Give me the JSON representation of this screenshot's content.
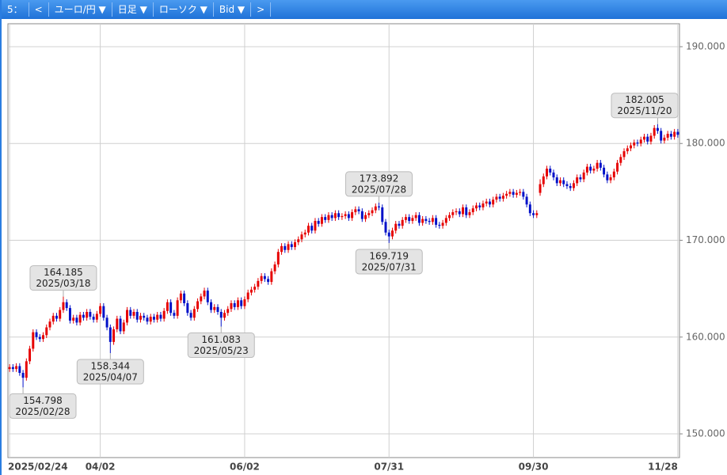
{
  "toolbar": {
    "items": [
      "5：",
      "<",
      "ユーロ/円 ▼",
      "日足 ▼",
      "ローソク ▼",
      "Bid ▼",
      ">"
    ]
  },
  "chart_data": {
    "type": "candlestick",
    "up_color": "#e60000",
    "down_color": "#0010c8",
    "grid": true,
    "open": [
      156.7,
      156.9,
      156.7,
      157.0,
      156.3,
      155.8,
      157.5,
      158.8,
      160.5,
      160.0,
      159.8,
      160.2,
      161.0,
      161.6,
      162.2,
      161.9,
      162.8,
      163.6,
      163.0,
      161.7,
      162.0,
      161.5,
      162.3,
      162.0,
      162.6,
      162.1,
      161.8,
      162.4,
      163.2,
      162.0,
      161.0,
      159.5,
      160.8,
      161.9,
      160.6,
      161.5,
      162.8,
      162.2,
      162.6,
      161.8,
      162.2,
      162.0,
      161.6,
      162.1,
      161.8,
      162.3,
      161.9,
      162.7,
      163.6,
      162.5,
      162.2,
      163.8,
      164.5,
      163.5,
      162.5,
      162.0,
      162.9,
      163.7,
      164.2,
      164.8,
      163.6,
      162.8,
      163.1,
      162.6,
      162.0,
      162.5,
      162.9,
      163.5,
      163.1,
      163.8,
      163.2,
      163.9,
      164.6,
      164.9,
      165.2,
      165.8,
      166.3,
      166.0,
      165.7,
      166.8,
      167.5,
      168.8,
      169.4,
      169.0,
      169.6,
      169.3,
      169.8,
      170.1,
      170.6,
      170.8,
      171.5,
      171.0,
      172.0,
      171.7,
      172.4,
      172.1,
      172.6,
      172.3,
      172.8,
      172.4,
      172.5,
      172.7,
      172.3,
      172.9,
      173.2,
      173.0,
      172.2,
      172.6,
      172.8,
      173.1,
      173.5,
      173.4,
      171.9,
      170.8,
      170.4,
      171.0,
      171.7,
      171.5,
      172.1,
      172.4,
      172.0,
      172.3,
      172.6,
      171.8,
      172.2,
      172.0,
      171.9,
      172.3,
      171.6,
      171.5,
      171.8,
      172.3,
      172.6,
      172.9,
      173.0,
      172.7,
      173.4,
      172.6,
      172.9,
      173.3,
      173.6,
      173.4,
      173.8,
      174.0,
      173.7,
      174.2,
      174.5,
      174.3,
      174.6,
      174.8,
      175.0,
      174.7,
      174.9,
      175.0,
      174.5,
      173.7,
      172.8,
      172.6,
      174.9,
      175.8,
      176.6,
      177.4,
      177.0,
      176.5,
      175.9,
      176.2,
      175.8,
      175.6,
      175.4,
      175.9,
      176.5,
      176.3,
      177.0,
      177.6,
      177.2,
      177.4,
      178.0,
      177.5,
      176.8,
      176.2,
      176.5,
      177.1,
      178.0,
      178.6,
      179.2,
      179.5,
      179.8,
      180.1,
      180.0,
      180.4,
      180.7,
      180.2,
      180.8,
      181.6,
      181.3,
      180.3,
      180.6,
      181.0,
      180.7,
      181.2
    ],
    "high": [
      157.2,
      157.2,
      157.3,
      157.3,
      156.6,
      157.8,
      159.1,
      160.8,
      160.8,
      160.3,
      160.5,
      161.3,
      161.9,
      162.5,
      162.5,
      163.1,
      164.185,
      163.9,
      163.3,
      162.3,
      162.3,
      162.6,
      162.6,
      162.9,
      162.9,
      162.4,
      162.7,
      163.5,
      163.5,
      162.3,
      161.3,
      161.1,
      162.2,
      162.2,
      161.8,
      163.1,
      163.1,
      162.9,
      162.9,
      162.5,
      162.5,
      162.3,
      162.4,
      162.4,
      162.6,
      162.6,
      163.0,
      163.9,
      163.9,
      162.8,
      164.1,
      164.8,
      164.8,
      163.8,
      162.8,
      163.2,
      164.0,
      164.5,
      165.1,
      165.1,
      163.9,
      163.4,
      163.4,
      162.9,
      162.8,
      163.2,
      163.8,
      163.8,
      164.1,
      164.1,
      164.2,
      164.9,
      165.2,
      165.5,
      166.1,
      166.6,
      166.6,
      166.3,
      167.1,
      167.8,
      169.1,
      169.7,
      169.7,
      169.9,
      169.9,
      170.1,
      170.4,
      170.9,
      171.1,
      171.8,
      171.8,
      172.3,
      172.3,
      172.7,
      172.7,
      172.9,
      172.9,
      173.1,
      173.1,
      172.8,
      173.0,
      173.0,
      173.2,
      173.5,
      173.5,
      173.3,
      172.9,
      173.1,
      173.4,
      173.8,
      173.892,
      173.7,
      172.2,
      171.1,
      171.3,
      172.0,
      172.0,
      172.4,
      172.7,
      172.7,
      172.6,
      172.9,
      172.9,
      172.5,
      172.5,
      172.3,
      172.6,
      172.6,
      171.9,
      172.1,
      172.6,
      172.9,
      173.2,
      173.3,
      173.3,
      173.7,
      173.7,
      173.2,
      173.6,
      173.9,
      173.9,
      174.1,
      174.3,
      174.3,
      174.5,
      174.8,
      174.8,
      174.9,
      175.1,
      175.3,
      175.3,
      175.2,
      175.3,
      175.3,
      174.8,
      174.0,
      173.1,
      173.1,
      176.3,
      176.9,
      177.7,
      177.7,
      177.3,
      176.8,
      176.5,
      176.5,
      176.1,
      175.9,
      176.2,
      176.8,
      176.8,
      177.3,
      177.9,
      177.9,
      177.7,
      178.3,
      178.3,
      177.8,
      177.1,
      176.8,
      177.4,
      178.3,
      178.9,
      179.5,
      179.8,
      180.1,
      180.4,
      180.4,
      180.7,
      181.0,
      181.0,
      181.1,
      181.9,
      182.005,
      181.6,
      180.9,
      181.3,
      181.3,
      181.5,
      181.5
    ],
    "low": [
      156.4,
      156.4,
      156.4,
      156.0,
      154.798,
      155.5,
      157.2,
      158.5,
      159.7,
      159.5,
      159.5,
      159.9,
      160.7,
      161.3,
      161.6,
      161.6,
      162.5,
      162.7,
      161.4,
      161.4,
      161.2,
      161.2,
      161.7,
      161.7,
      161.8,
      161.5,
      161.5,
      162.1,
      161.7,
      160.7,
      158.344,
      159.2,
      160.5,
      160.3,
      160.3,
      161.2,
      161.9,
      161.9,
      161.5,
      161.5,
      161.7,
      161.3,
      161.3,
      161.5,
      161.5,
      161.6,
      161.6,
      162.4,
      162.2,
      161.9,
      161.9,
      163.5,
      163.2,
      162.2,
      161.7,
      161.7,
      162.6,
      163.4,
      163.9,
      163.3,
      162.5,
      162.5,
      162.3,
      161.083,
      161.7,
      162.2,
      162.6,
      162.8,
      162.8,
      162.9,
      162.9,
      163.6,
      164.3,
      164.6,
      164.9,
      165.5,
      165.7,
      165.4,
      165.4,
      166.5,
      167.2,
      168.5,
      168.7,
      168.7,
      169.0,
      169.0,
      169.5,
      169.8,
      170.3,
      170.5,
      170.7,
      170.7,
      171.4,
      171.4,
      171.8,
      171.8,
      172.0,
      172.0,
      172.1,
      172.1,
      172.2,
      172.0,
      172.0,
      172.6,
      172.7,
      171.9,
      171.9,
      172.3,
      172.5,
      172.8,
      173.1,
      171.6,
      170.5,
      169.719,
      170.1,
      170.7,
      171.2,
      171.2,
      171.8,
      171.7,
      171.7,
      172.0,
      171.5,
      171.5,
      171.7,
      171.6,
      171.6,
      171.3,
      171.2,
      171.2,
      171.5,
      172.0,
      172.3,
      172.6,
      172.4,
      172.4,
      172.3,
      172.3,
      172.6,
      173.0,
      173.1,
      173.1,
      173.5,
      173.4,
      173.4,
      173.9,
      174.0,
      174.0,
      174.3,
      174.5,
      174.4,
      174.4,
      174.6,
      174.2,
      173.4,
      172.5,
      172.3,
      172.3,
      174.6,
      175.5,
      176.3,
      176.7,
      176.2,
      175.6,
      175.6,
      175.5,
      175.3,
      175.1,
      175.1,
      175.6,
      176.0,
      176.0,
      176.7,
      176.9,
      176.9,
      177.1,
      177.2,
      176.5,
      175.9,
      175.9,
      176.2,
      176.8,
      177.7,
      178.3,
      178.9,
      179.2,
      179.5,
      179.7,
      179.7,
      180.1,
      179.9,
      179.9,
      180.5,
      181.0,
      180.0,
      180.0,
      180.3,
      180.4,
      180.4,
      180.6
    ],
    "close": [
      156.9,
      156.7,
      157.0,
      156.3,
      155.8,
      157.5,
      158.8,
      160.5,
      160.0,
      159.8,
      160.2,
      161.0,
      161.6,
      162.2,
      161.9,
      162.8,
      163.6,
      163.0,
      161.7,
      162.0,
      161.5,
      162.3,
      162.0,
      162.6,
      162.1,
      161.8,
      162.4,
      163.2,
      162.0,
      161.0,
      159.5,
      160.8,
      161.9,
      160.6,
      161.5,
      162.8,
      162.2,
      162.6,
      161.8,
      162.2,
      162.0,
      161.6,
      162.1,
      161.8,
      162.3,
      161.9,
      162.7,
      163.6,
      162.5,
      162.2,
      163.8,
      164.5,
      163.5,
      162.5,
      162.0,
      162.9,
      163.7,
      164.2,
      164.8,
      163.6,
      162.8,
      163.1,
      162.6,
      162.0,
      162.5,
      162.9,
      163.5,
      163.1,
      163.8,
      163.2,
      163.9,
      164.6,
      164.9,
      165.2,
      165.8,
      166.3,
      166.0,
      165.7,
      166.8,
      167.5,
      168.8,
      169.4,
      169.0,
      169.6,
      169.3,
      169.8,
      170.1,
      170.6,
      170.8,
      171.5,
      171.0,
      172.0,
      171.7,
      172.4,
      172.1,
      172.6,
      172.3,
      172.8,
      172.4,
      172.5,
      172.7,
      172.3,
      172.9,
      173.2,
      173.0,
      172.2,
      172.6,
      172.8,
      173.1,
      173.5,
      173.4,
      171.9,
      170.8,
      170.4,
      171.0,
      171.7,
      171.5,
      172.1,
      172.4,
      172.0,
      172.3,
      172.6,
      171.8,
      172.2,
      172.0,
      171.9,
      172.3,
      171.6,
      171.5,
      171.8,
      172.3,
      172.6,
      172.9,
      173.0,
      172.7,
      173.4,
      172.6,
      172.9,
      173.3,
      173.6,
      173.4,
      173.8,
      174.0,
      173.7,
      174.2,
      174.5,
      174.3,
      174.6,
      174.8,
      175.0,
      174.7,
      174.9,
      175.0,
      174.5,
      173.7,
      172.8,
      172.6,
      172.8,
      175.8,
      176.6,
      177.4,
      177.0,
      176.5,
      175.9,
      176.2,
      175.8,
      175.6,
      175.4,
      175.9,
      176.5,
      176.3,
      177.0,
      177.6,
      177.2,
      177.4,
      178.0,
      177.5,
      176.8,
      176.2,
      176.5,
      177.1,
      178.0,
      178.6,
      179.2,
      179.5,
      179.8,
      180.1,
      180.0,
      180.4,
      180.7,
      180.2,
      180.8,
      181.6,
      181.3,
      180.3,
      180.6,
      181.0,
      180.7,
      181.2,
      180.9
    ],
    "xlim": [
      -0.5,
      199.5
    ],
    "xticks": [
      {
        "value": 0,
        "label": "2025/02/24"
      },
      {
        "value": 27,
        "label": "04/02"
      },
      {
        "value": 70,
        "label": "06/02"
      },
      {
        "value": 113,
        "label": "07/31"
      },
      {
        "value": 156,
        "label": "09/30"
      },
      {
        "value": 199,
        "label": "11/28"
      }
    ],
    "ylim": [
      147.55,
      192.37
    ],
    "yticks": [
      {
        "value": 150,
        "label": "150.000"
      },
      {
        "value": 160,
        "label": "160.000"
      },
      {
        "value": 170,
        "label": "170.000"
      },
      {
        "value": 180,
        "label": "180.000"
      },
      {
        "value": 190,
        "label": "190.000"
      }
    ],
    "annotations": [
      {
        "value": 154.798,
        "date": "2025/02/28"
      },
      {
        "value": 164.185,
        "date": "2025/03/18"
      },
      {
        "value": 158.344,
        "date": "2025/04/07"
      },
      {
        "value": 161.083,
        "date": "2025/05/23"
      },
      {
        "value": 173.892,
        "date": "2025/07/28"
      },
      {
        "value": 169.719,
        "date": "2025/07/31"
      },
      {
        "value": 182.005,
        "date": "2025/11/20"
      }
    ]
  }
}
